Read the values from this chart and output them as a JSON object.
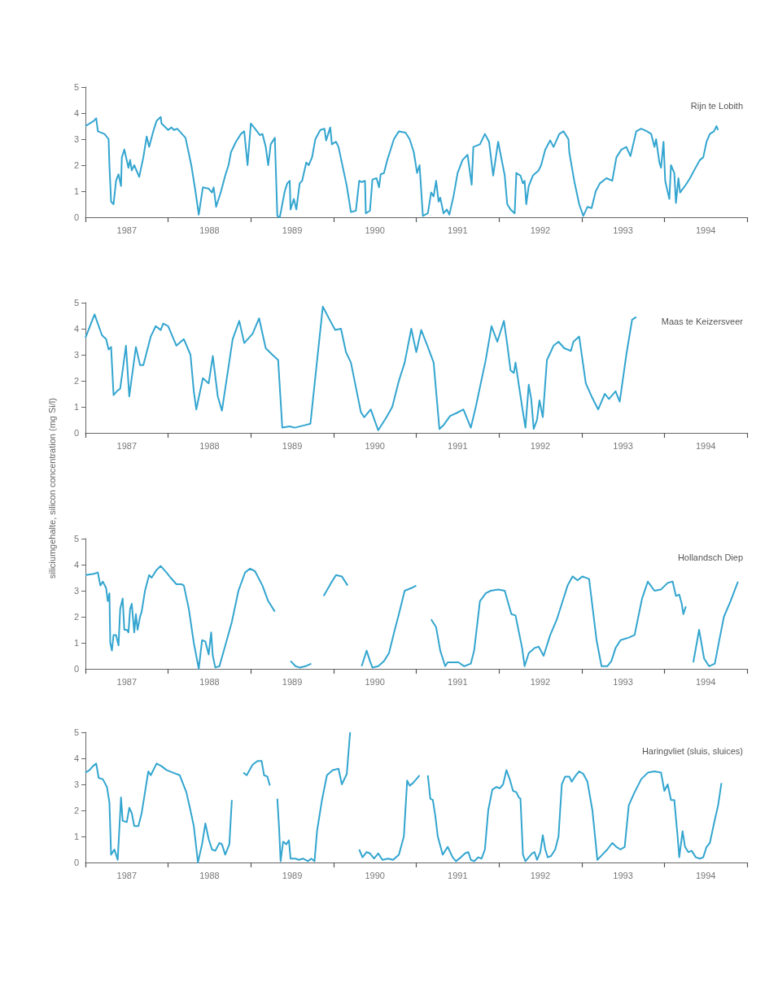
{
  "chart_data": [
    {
      "type": "line",
      "title": "Rijn te Lobith",
      "xlim": [
        1987,
        1995
      ],
      "ylim": [
        0,
        5
      ],
      "yticks": [
        0,
        1,
        2,
        3,
        4,
        5
      ],
      "xticks": [
        {
          "value": 1987,
          "label": null
        },
        {
          "value": 1987.5,
          "label": "1987"
        },
        {
          "value": 1988,
          "label": null
        },
        {
          "value": 1988.5,
          "label": "1988"
        },
        {
          "value": 1989,
          "label": null
        },
        {
          "value": 1989.5,
          "label": "1989"
        },
        {
          "value": 1990,
          "label": null
        },
        {
          "value": 1990.5,
          "label": "1990"
        },
        {
          "value": 1991,
          "label": null
        },
        {
          "value": 1991.5,
          "label": "1991"
        },
        {
          "value": 1992,
          "label": null
        },
        {
          "value": 1992.5,
          "label": "1992"
        },
        {
          "value": 1993,
          "label": null
        },
        {
          "value": 1993.5,
          "label": "1993"
        },
        {
          "value": 1994,
          "label": null
        },
        {
          "value": 1994.5,
          "label": "1994"
        },
        {
          "value": 1995,
          "label": null
        }
      ],
      "series": [
        {
          "color": "#33a5cf",
          "x": [
            1987.0,
            1987.1,
            1987.13,
            1987.15,
            1987.23,
            1987.28,
            1987.29,
            1987.31,
            1987.34,
            1987.37,
            1987.4,
            1987.43,
            1987.44,
            1987.47,
            1987.52,
            1987.54,
            1987.56,
            1987.59,
            1987.65,
            1987.7,
            1987.74,
            1987.77,
            1987.82,
            1987.86,
            1987.91,
            1987.92,
            1988.0,
            1988.04,
            1988.07,
            1988.11,
            1988.21,
            1988.28,
            1988.33,
            1988.37,
            1988.42,
            1988.49,
            1988.53,
            1988.55,
            1988.58,
            1988.64,
            1988.69,
            1988.73,
            1988.76,
            1988.82,
            1988.88,
            1988.92,
            1988.96,
            1989.0,
            1989.05,
            1989.11,
            1989.14,
            1989.18,
            1989.21,
            1989.24,
            1989.29,
            1989.32,
            1989.35,
            1989.41,
            1989.44,
            1989.47,
            1989.48,
            1989.52,
            1989.55,
            1989.59,
            1989.62,
            1989.67,
            1989.7,
            1989.74,
            1989.78,
            1989.84,
            1989.89,
            1989.91,
            1989.96,
            1989.98,
            1990.03,
            1990.06,
            1990.16,
            1990.21,
            1990.27,
            1990.31,
            1990.34,
            1990.38,
            1990.39,
            1990.44,
            1990.47,
            1990.52,
            1990.55,
            1990.57,
            1990.61,
            1990.65,
            1990.69,
            1990.73,
            1990.79,
            1990.87,
            1990.92,
            1990.97,
            1991.01,
            1991.04,
            1991.08,
            1991.14,
            1991.18,
            1991.21,
            1991.24,
            1991.27,
            1991.29,
            1991.33,
            1991.37,
            1991.4,
            1991.45,
            1991.5,
            1991.56,
            1991.62,
            1991.67,
            1991.69,
            1991.77,
            1991.83,
            1991.88,
            1991.93,
            1991.99,
            1992.07,
            1992.1,
            1992.14,
            1992.19,
            1992.21,
            1992.26,
            1992.29,
            1992.31,
            1992.33,
            1992.36,
            1992.41,
            1992.48,
            1992.51,
            1992.56,
            1992.62,
            1992.66,
            1992.73,
            1992.78,
            1992.84,
            1992.85,
            1992.91,
            1992.97,
            1993.02,
            1993.07,
            1993.12,
            1993.17,
            1993.22,
            1993.3,
            1993.37,
            1993.42,
            1993.48,
            1993.54,
            1993.59,
            1993.66,
            1993.72,
            1993.79,
            1993.84,
            1993.88,
            1993.9,
            1993.94,
            1993.96,
            1993.99,
            1994.01,
            1994.06,
            1994.08,
            1994.12,
            1994.14,
            1994.17,
            1994.19,
            1994.26,
            1994.31,
            1994.36,
            1994.43,
            1994.47,
            1994.51,
            1994.55,
            1994.6,
            1994.63,
            1994.65
          ],
          "values": [
            3.5,
            3.7,
            3.8,
            3.3,
            3.2,
            3.0,
            2.0,
            0.6,
            0.5,
            1.4,
            1.65,
            1.2,
            2.3,
            2.6,
            1.9,
            2.2,
            1.8,
            2.0,
            1.55,
            2.3,
            3.1,
            2.7,
            3.3,
            3.7,
            3.85,
            3.6,
            3.35,
            3.45,
            3.35,
            3.4,
            3.05,
            2.0,
            1.0,
            0.1,
            1.15,
            1.1,
            0.95,
            1.15,
            0.4,
            1.0,
            1.6,
            2.0,
            2.5,
            2.9,
            3.2,
            3.3,
            2.0,
            3.6,
            3.4,
            3.15,
            3.2,
            2.7,
            2.0,
            2.8,
            3.05,
            0.05,
            0.0,
            1.0,
            1.3,
            1.4,
            0.3,
            0.7,
            0.3,
            1.3,
            1.4,
            2.1,
            2.0,
            2.3,
            3.0,
            3.35,
            3.4,
            2.95,
            3.45,
            2.8,
            2.9,
            2.7,
            1.2,
            0.2,
            0.25,
            1.4,
            1.35,
            1.4,
            0.15,
            0.25,
            1.45,
            1.5,
            1.15,
            1.65,
            1.7,
            2.2,
            2.6,
            3.0,
            3.3,
            3.25,
            3.0,
            2.5,
            1.7,
            2.0,
            0.05,
            0.15,
            0.95,
            0.8,
            1.4,
            0.6,
            0.75,
            0.15,
            0.3,
            0.1,
            0.8,
            1.7,
            2.2,
            2.4,
            1.25,
            2.7,
            2.8,
            3.2,
            2.9,
            1.6,
            2.9,
            1.6,
            0.5,
            0.3,
            0.15,
            1.7,
            1.6,
            1.3,
            1.4,
            0.5,
            1.2,
            1.6,
            1.8,
            2.0,
            2.6,
            2.95,
            2.7,
            3.2,
            3.3,
            3.0,
            2.5,
            1.4,
            0.5,
            0.05,
            0.4,
            0.35,
            1.0,
            1.3,
            1.5,
            1.4,
            2.3,
            2.6,
            2.7,
            2.35,
            3.3,
            3.4,
            3.3,
            3.2,
            2.7,
            3.0,
            2.1,
            1.9,
            2.9,
            1.4,
            0.7,
            2.0,
            1.7,
            0.55,
            1.5,
            0.95,
            1.25,
            1.5,
            1.8,
            2.2,
            2.3,
            2.9,
            3.2,
            3.3,
            3.5,
            3.35
          ]
        }
      ]
    },
    {
      "type": "line",
      "title": "Maas te Keizersveer",
      "ylabel": "siliciumgehalte, silicon concentration (mg Si/l)",
      "xlim": [
        1987,
        1995
      ],
      "ylim": [
        0,
        5
      ],
      "yticks": [
        0,
        1,
        2,
        3,
        4,
        5
      ],
      "xticks": [
        {
          "value": 1987,
          "label": null
        },
        {
          "value": 1987.5,
          "label": "1987"
        },
        {
          "value": 1988,
          "label": null
        },
        {
          "value": 1988.5,
          "label": "1988"
        },
        {
          "value": 1989,
          "label": null
        },
        {
          "value": 1989.5,
          "label": "1989"
        },
        {
          "value": 1990,
          "label": null
        },
        {
          "value": 1990.5,
          "label": "1990"
        },
        {
          "value": 1991,
          "label": null
        },
        {
          "value": 1991.5,
          "label": "1991"
        },
        {
          "value": 1992,
          "label": null
        },
        {
          "value": 1992.5,
          "label": "1992"
        },
        {
          "value": 1993,
          "label": null
        },
        {
          "value": 1993.5,
          "label": "1993"
        },
        {
          "value": 1994,
          "label": null
        },
        {
          "value": 1994.5,
          "label": "1994"
        },
        {
          "value": 1995,
          "label": null
        }
      ],
      "series": [
        {
          "color": "#33a5cf",
          "x": [
            1987.0,
            1987.11,
            1987.2,
            1987.25,
            1987.28,
            1987.31,
            1987.34,
            1987.38,
            1987.42,
            1987.49,
            1987.53,
            1987.61,
            1987.66,
            1987.7,
            1987.79,
            1987.85,
            1987.91,
            1987.94,
            1988.0,
            1988.1,
            1988.19,
            1988.27,
            1988.31,
            1988.34,
            1988.42,
            1988.49,
            1988.54,
            1988.6,
            1988.65,
            1988.78,
            1988.86,
            1988.92,
            1989.02,
            1989.1,
            1989.18,
            1989.26,
            1989.33,
            1989.38,
            1989.47,
            1989.53,
            1989.66,
            1989.72,
            1989.87,
            1989.96,
            1990.02,
            1990.09,
            1990.15,
            1990.21,
            1990.33,
            1990.37,
            1990.45,
            1990.54,
            1990.64,
            1990.71,
            1990.79,
            1990.86,
            1990.94,
            1991.0,
            1991.06,
            1991.14,
            1991.21,
            1991.28,
            1991.33,
            1991.41,
            1991.48,
            1991.57,
            1991.66,
            1991.72,
            1991.84,
            1991.91,
            1991.98,
            1992.06,
            1992.1,
            1992.14,
            1992.18,
            1992.2,
            1992.28,
            1992.32,
            1992.36,
            1992.39,
            1992.42,
            1992.46,
            1992.49,
            1992.53,
            1992.58,
            1992.61,
            1992.66,
            1992.72,
            1992.79,
            1992.87,
            1992.9,
            1992.97,
            1993.05,
            1993.12,
            1993.2,
            1993.28,
            1993.33,
            1993.41,
            1993.46,
            1993.54,
            1993.61,
            1993.66
          ],
          "values": [
            3.65,
            4.55,
            3.75,
            3.6,
            3.2,
            3.3,
            1.45,
            1.6,
            1.7,
            3.35,
            1.4,
            3.3,
            2.6,
            2.6,
            3.7,
            4.1,
            3.95,
            4.2,
            4.1,
            3.35,
            3.6,
            3.0,
            1.6,
            0.9,
            2.1,
            1.9,
            2.95,
            1.4,
            0.85,
            3.6,
            4.3,
            3.45,
            3.8,
            4.4,
            3.25,
            3.0,
            2.8,
            0.2,
            0.25,
            0.2,
            0.3,
            0.35,
            4.85,
            4.3,
            3.95,
            4.0,
            3.1,
            2.7,
            0.8,
            0.6,
            0.9,
            0.1,
            0.6,
            1.0,
            2.0,
            2.7,
            4.0,
            3.1,
            3.95,
            3.3,
            2.7,
            0.15,
            0.3,
            0.65,
            0.75,
            0.9,
            0.2,
            1.0,
            2.8,
            4.1,
            3.5,
            4.3,
            3.4,
            2.4,
            2.3,
            2.7,
            1.0,
            0.2,
            1.85,
            1.3,
            0.15,
            0.5,
            1.25,
            0.6,
            2.8,
            3.0,
            3.35,
            3.5,
            3.25,
            3.15,
            3.5,
            3.7,
            1.9,
            1.4,
            0.9,
            1.5,
            1.3,
            1.6,
            1.2,
            3.0,
            4.35,
            4.45
          ]
        }
      ]
    },
    {
      "type": "line",
      "title": "Hollandsch Diep",
      "xlim": [
        1987,
        1995
      ],
      "ylim": [
        0,
        5
      ],
      "yticks": [
        0,
        1,
        2,
        3,
        4,
        5
      ],
      "xticks": [
        {
          "value": 1987,
          "label": null
        },
        {
          "value": 1987.5,
          "label": "1987"
        },
        {
          "value": 1988,
          "label": null
        },
        {
          "value": 1988.5,
          "label": "1988"
        },
        {
          "value": 1989,
          "label": null
        },
        {
          "value": 1989.5,
          "label": "1989"
        },
        {
          "value": 1990,
          "label": null
        },
        {
          "value": 1990.5,
          "label": "1990"
        },
        {
          "value": 1991,
          "label": null
        },
        {
          "value": 1991.5,
          "label": "1991"
        },
        {
          "value": 1992,
          "label": null
        },
        {
          "value": 1992.5,
          "label": "1992"
        },
        {
          "value": 1993,
          "label": null
        },
        {
          "value": 1993.5,
          "label": "1993"
        },
        {
          "value": 1994,
          "label": null
        },
        {
          "value": 1994.5,
          "label": "1994"
        },
        {
          "value": 1995,
          "label": null
        }
      ],
      "series": [
        {
          "color": "#33a5cf",
          "x": [
            1987.0,
            1987.1,
            1987.15,
            1987.18,
            1987.21,
            1987.25,
            1987.27,
            1987.29,
            1987.3,
            1987.32,
            1987.34,
            1987.37,
            1987.4,
            1987.42,
            1987.45,
            1987.47,
            1987.5,
            1987.52,
            1987.54,
            1987.56,
            1987.59,
            1987.61,
            1987.63,
            1987.66,
            1987.68,
            1987.72,
            1987.77,
            1987.8,
            1987.86,
            1987.91,
            1987.98,
            1988.03,
            1988.1,
            1988.16,
            1988.19,
            1988.25,
            1988.31,
            1988.37,
            1988.41,
            1988.45,
            1988.49,
            1988.52,
            1988.54,
            1988.57,
            1988.62,
            1988.7,
            1988.77,
            1988.85,
            1988.93,
            1988.99,
            1989.05,
            1989.14,
            1989.21,
            1989.29,
            1989.38,
            1989.48,
            1989.54,
            1989.59,
            1989.66,
            1989.73,
            1989.8,
            1989.88,
            1989.97,
            1990.03,
            1990.1,
            1990.17,
            1990.25,
            1990.34,
            1990.4,
            1990.44,
            1990.47,
            1990.54,
            1990.61,
            1990.67,
            1990.74,
            1990.79,
            1990.86,
            1990.94,
            1991.0,
            1991.09,
            1991.18,
            1991.24,
            1991.29,
            1991.35,
            1991.38,
            1991.45,
            1991.51,
            1991.58,
            1991.66,
            1991.7,
            1991.77,
            1991.84,
            1991.9,
            1991.99,
            1992.07,
            1992.15,
            1992.2,
            1992.28,
            1992.31,
            1992.36,
            1992.43,
            1992.48,
            1992.54,
            1992.62,
            1992.7,
            1992.76,
            1992.83,
            1992.89,
            1992.95,
            1993.01,
            1993.09,
            1993.18,
            1993.24,
            1993.31,
            1993.36,
            1993.41,
            1993.47,
            1993.57,
            1993.64,
            1993.73,
            1993.8,
            1993.88,
            1993.96,
            1994.04,
            1994.1,
            1994.14,
            1994.18,
            1994.21,
            1994.23,
            1994.26,
            1994.3,
            1994.35,
            1994.42,
            1994.48,
            1994.54,
            1994.61,
            1994.67,
            1994.72,
            1994.8,
            1994.89
          ],
          "values": [
            3.6,
            3.65,
            3.7,
            3.2,
            3.35,
            3.1,
            2.6,
            2.9,
            1.0,
            0.7,
            1.3,
            1.3,
            0.9,
            2.3,
            2.7,
            1.5,
            1.5,
            1.4,
            2.3,
            2.5,
            1.4,
            2.1,
            1.5,
            2.0,
            2.2,
            3.0,
            3.6,
            3.5,
            3.8,
            3.95,
            3.7,
            3.5,
            3.25,
            3.25,
            3.2,
            2.3,
            1.0,
            0.0,
            1.1,
            1.05,
            0.55,
            1.4,
            0.5,
            0.05,
            0.1,
            1.0,
            1.8,
            3.0,
            3.7,
            3.85,
            3.75,
            3.2,
            2.6,
            2.2,
            null,
            0.3,
            0.1,
            0.05,
            0.1,
            0.2,
            null,
            2.8,
            3.3,
            3.6,
            3.55,
            3.2,
            null,
            0.1,
            0.7,
            0.3,
            0.05,
            0.1,
            0.3,
            0.6,
            1.5,
            2.1,
            3.0,
            3.1,
            3.2,
            null,
            1.9,
            1.6,
            0.7,
            0.1,
            0.25,
            0.25,
            0.25,
            0.1,
            0.2,
            0.7,
            2.6,
            2.9,
            3.0,
            3.05,
            3.0,
            2.1,
            2.05,
            0.8,
            0.1,
            0.6,
            0.8,
            0.85,
            0.5,
            1.3,
            1.9,
            2.5,
            3.2,
            3.55,
            3.4,
            3.55,
            3.45,
            1.1,
            0.1,
            0.1,
            0.3,
            0.8,
            1.1,
            1.2,
            1.3,
            2.7,
            3.35,
            3.0,
            3.05,
            3.3,
            3.35,
            2.8,
            2.85,
            2.5,
            2.1,
            2.4,
            null,
            0.25,
            1.5,
            0.4,
            0.1,
            0.2,
            1.2,
            2.0,
            2.6,
            3.35
          ]
        }
      ]
    },
    {
      "type": "line",
      "title": "Haringvliet (sluis, sluices)",
      "xlim": [
        1987,
        1995
      ],
      "ylim": [
        0,
        5
      ],
      "yticks": [
        0,
        1,
        2,
        3,
        4,
        5
      ],
      "xticks": [
        {
          "value": 1987,
          "label": null
        },
        {
          "value": 1987.5,
          "label": "1987"
        },
        {
          "value": 1988,
          "label": null
        },
        {
          "value": 1988.5,
          "label": "1988"
        },
        {
          "value": 1989,
          "label": null
        },
        {
          "value": 1989.5,
          "label": "1989"
        },
        {
          "value": 1990,
          "label": null
        },
        {
          "value": 1990.5,
          "label": "1990"
        },
        {
          "value": 1991,
          "label": null
        },
        {
          "value": 1991.5,
          "label": "1991"
        },
        {
          "value": 1992,
          "label": null
        },
        {
          "value": 1992.5,
          "label": "1992"
        },
        {
          "value": 1993,
          "label": null
        },
        {
          "value": 1993.5,
          "label": "1993"
        },
        {
          "value": 1994,
          "label": null
        },
        {
          "value": 1994.5,
          "label": "1994"
        },
        {
          "value": 1995,
          "label": null
        }
      ],
      "series": [
        {
          "color": "#33a5cf",
          "x": [
            1987.0,
            1987.05,
            1987.09,
            1987.13,
            1987.16,
            1987.21,
            1987.26,
            1987.29,
            1987.31,
            1987.35,
            1987.39,
            1987.43,
            1987.45,
            1987.5,
            1987.53,
            1987.56,
            1987.59,
            1987.64,
            1987.68,
            1987.72,
            1987.76,
            1987.79,
            1987.86,
            1987.92,
            1987.98,
            1988.06,
            1988.14,
            1988.22,
            1988.27,
            1988.31,
            1988.36,
            1988.41,
            1988.45,
            1988.49,
            1988.53,
            1988.57,
            1988.62,
            1988.65,
            1988.69,
            1988.74,
            1988.77,
            1988.84,
            1988.91,
            1988.95,
            1989.02,
            1989.08,
            1989.13,
            1989.16,
            1989.2,
            1989.23,
            1989.28,
            1989.32,
            1989.34,
            1989.36,
            1989.39,
            1989.43,
            1989.46,
            1989.48,
            1989.54,
            1989.58,
            1989.63,
            1989.69,
            1989.73,
            1989.77,
            1989.8,
            1989.86,
            1989.92,
            1989.99,
            1990.06,
            1990.1,
            1990.16,
            1990.2,
            1990.26,
            1990.31,
            1990.35,
            1990.4,
            1990.44,
            1990.49,
            1990.54,
            1990.59,
            1990.66,
            1990.72,
            1990.79,
            1990.85,
            1990.89,
            1990.92,
            1990.96,
            1991.0,
            1991.04,
            1991.09,
            1991.14,
            1991.17,
            1991.2,
            1991.23,
            1991.26,
            1991.32,
            1991.38,
            1991.44,
            1991.48,
            1991.54,
            1991.59,
            1991.63,
            1991.66,
            1991.7,
            1991.75,
            1991.79,
            1991.83,
            1991.87,
            1991.92,
            1991.97,
            1992.01,
            1992.05,
            1992.09,
            1992.13,
            1992.17,
            1992.21,
            1992.24,
            1992.26,
            1992.29,
            1992.32,
            1992.36,
            1992.4,
            1992.43,
            1992.46,
            1992.5,
            1992.53,
            1992.56,
            1992.59,
            1992.63,
            1992.68,
            1992.72,
            1992.76,
            1992.8,
            1992.85,
            1992.88,
            1992.93,
            1992.97,
            1993.02,
            1993.07,
            1993.13,
            1993.19,
            1993.25,
            1993.31,
            1993.37,
            1993.42,
            1993.47,
            1993.52,
            1993.57,
            1993.64,
            1993.72,
            1993.8,
            1993.88,
            1993.96,
            1994.0,
            1994.04,
            1994.08,
            1994.12,
            1994.16,
            1994.18,
            1994.22,
            1994.25,
            1994.29,
            1994.33,
            1994.38,
            1994.43,
            1994.47,
            1994.51,
            1994.55,
            1994.6,
            1994.65,
            1994.69
          ],
          "values": [
            3.45,
            3.55,
            3.7,
            3.8,
            3.25,
            3.2,
            2.9,
            2.3,
            0.3,
            0.5,
            0.1,
            2.5,
            1.6,
            1.55,
            2.1,
            1.9,
            1.4,
            1.4,
            1.9,
            2.7,
            3.5,
            3.35,
            3.8,
            3.7,
            3.55,
            3.45,
            3.35,
            2.7,
            2.0,
            1.4,
            0.0,
            0.7,
            1.5,
            0.9,
            0.5,
            0.45,
            0.75,
            0.7,
            0.3,
            0.7,
            2.4,
            null,
            3.45,
            3.35,
            3.75,
            3.9,
            3.9,
            3.35,
            3.3,
            2.95,
            null,
            2.45,
            1.4,
            0.05,
            0.8,
            0.7,
            0.85,
            0.15,
            0.15,
            0.1,
            0.15,
            0.05,
            0.15,
            0.05,
            1.2,
            2.4,
            3.35,
            3.55,
            3.6,
            3.0,
            3.4,
            5.0,
            null,
            0.5,
            0.2,
            0.4,
            0.35,
            0.15,
            0.35,
            0.1,
            0.15,
            0.1,
            0.3,
            1.0,
            3.15,
            2.95,
            3.05,
            3.2,
            3.35,
            null,
            3.35,
            2.45,
            2.4,
            1.8,
            1.0,
            0.3,
            0.6,
            0.2,
            0.05,
            0.2,
            0.35,
            0.4,
            0.1,
            0.05,
            0.2,
            0.15,
            0.5,
            2.0,
            2.8,
            2.9,
            2.85,
            3.0,
            3.55,
            3.2,
            2.75,
            2.7,
            2.5,
            2.45,
            0.3,
            0.05,
            0.2,
            0.35,
            0.4,
            0.1,
            0.4,
            1.05,
            0.5,
            0.2,
            0.25,
            0.5,
            1.0,
            3.0,
            3.3,
            3.3,
            3.1,
            3.35,
            3.5,
            3.4,
            3.1,
            2.0,
            0.1,
            0.3,
            0.5,
            0.75,
            0.6,
            0.5,
            0.6,
            2.2,
            2.7,
            3.2,
            3.45,
            3.5,
            3.45,
            2.75,
            3.0,
            2.4,
            2.4,
            1.0,
            0.2,
            1.2,
            0.6,
            0.4,
            0.45,
            0.2,
            0.15,
            0.2,
            0.6,
            0.75,
            1.5,
            2.2,
            3.05
          ]
        }
      ]
    }
  ]
}
